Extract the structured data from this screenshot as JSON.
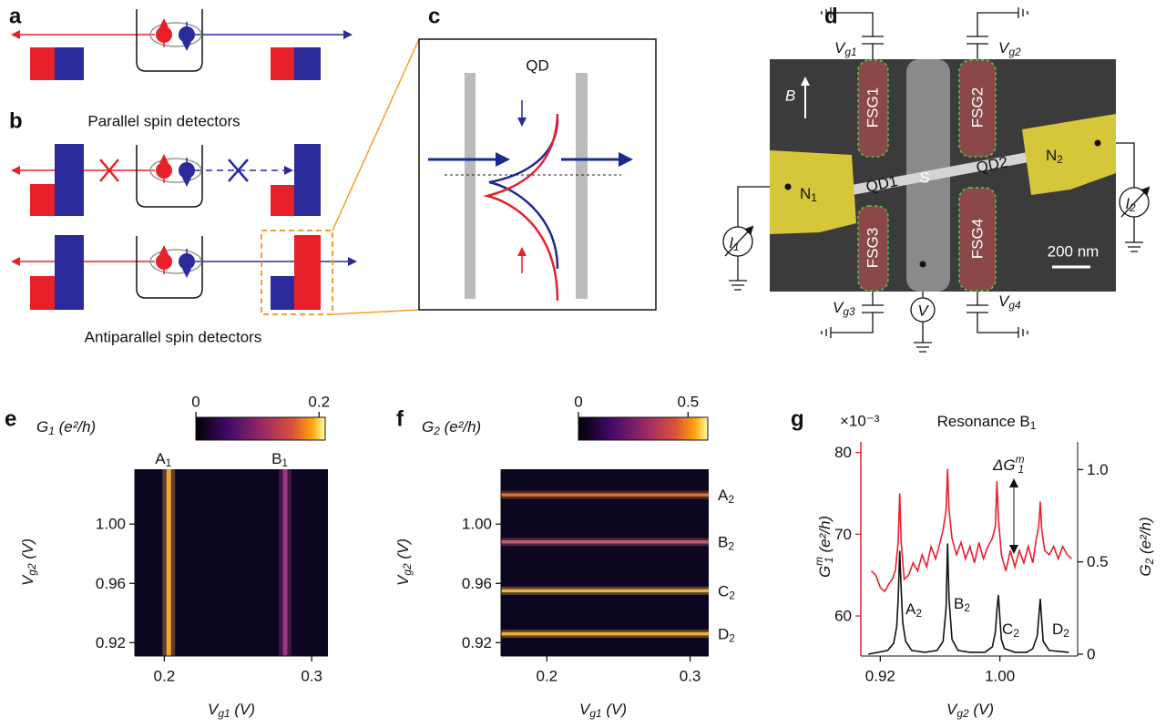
{
  "panel_labels": [
    "a",
    "b",
    "c",
    "d",
    "e",
    "f",
    "g"
  ],
  "panel_b": {
    "top": "Parallel spin detectors",
    "bottom": "Antiparallel spin detectors"
  },
  "panel_c": {
    "label": "QD"
  },
  "panel_d": {
    "gates": [
      "FSG1",
      "FSG2",
      "FSG3",
      "FSG4"
    ],
    "dots": [
      "QD1",
      "QD2"
    ],
    "s": "S",
    "n1": {
      "text": "N",
      "sub": "1"
    },
    "n2": {
      "text": "N",
      "sub": "2"
    },
    "b": "B",
    "scale": "200 nm",
    "vg1": {
      "text": "V",
      "sub": "g1"
    },
    "vg2": {
      "text": "V",
      "sub": "g2"
    },
    "vg3": {
      "text": "V",
      "sub": "g3"
    },
    "vg4": {
      "text": "V",
      "sub": "g4"
    },
    "i1": {
      "text": "I",
      "sub": "1"
    },
    "i2": {
      "text": "I",
      "sub": "2"
    },
    "v": "V"
  },
  "chart_data": [
    {
      "type": "heatmap",
      "colorbar": {
        "label": {
          "text": "G",
          "sub": "1",
          "after": " (e²/h)"
        },
        "lim": [
          0,
          0.21
        ],
        "ticks": [
          0,
          0.2
        ]
      },
      "xlabel": {
        "text": "V",
        "sub": "g1",
        "after": " (V)"
      },
      "ylabel": {
        "text": "V",
        "sub": "g2",
        "after": " (V)"
      },
      "xlim": [
        0.18,
        0.311
      ],
      "ylim": [
        0.911,
        1.037
      ],
      "xticks": [
        0.2,
        0.3
      ],
      "yticks": [
        0.92,
        0.96,
        {
          "value": 1,
          "label": "1.00"
        }
      ],
      "resonances": [
        {
          "name": {
            "text": "A",
            "sub": "1"
          },
          "x": 0.203,
          "color": "#f2a33a"
        },
        {
          "name": {
            "text": "B",
            "sub": "1"
          },
          "x": 0.282,
          "color": "#9c3583"
        }
      ]
    },
    {
      "type": "heatmap",
      "colorbar": {
        "label": {
          "text": "G",
          "sub": "2",
          "after": " (e²/h)"
        },
        "lim": [
          0,
          0.59
        ],
        "ticks": [
          0,
          0.5
        ]
      },
      "xlabel": {
        "text": "V",
        "sub": "g1",
        "after": " (V)"
      },
      "ylabel": {
        "text": "V",
        "sub": "g2",
        "after": " (V)"
      },
      "xlim": [
        0.168,
        0.313
      ],
      "ylim": [
        0.911,
        1.037
      ],
      "xticks": [
        0.2,
        0.3
      ],
      "yticks": [
        0.92,
        0.96,
        {
          "value": 1,
          "label": "1.00"
        }
      ],
      "resonances": [
        {
          "name": {
            "text": "A",
            "sub": "2"
          },
          "y": 1.0197,
          "color": "#d8702f"
        },
        {
          "name": {
            "text": "B",
            "sub": "2"
          },
          "y": 0.988,
          "color": "#c05a6a"
        },
        {
          "name": {
            "text": "C",
            "sub": "2"
          },
          "y": 0.955,
          "color": "#f0b040"
        },
        {
          "name": {
            "text": "D",
            "sub": "2"
          },
          "y": 0.926,
          "color": "#f0b040"
        }
      ]
    },
    {
      "type": "line",
      "title": {
        "text": "Resonance B",
        "sub": "1"
      },
      "scale_label": "×10⁻³",
      "xlabel": {
        "text": "V",
        "sub": "g2",
        "after": " (V)"
      },
      "ylabel": {
        "text": "G",
        "sup": "m",
        "sub": "1",
        "after": " (e²/h)"
      },
      "y2label": {
        "text": "G",
        "sub": "2",
        "after": " (e²/h)"
      },
      "xlim": [
        0.907,
        1.052
      ],
      "ylim": [
        55.1,
        81.3
      ],
      "y2lim": [
        -0.01,
        1.15
      ],
      "xticks": [
        0.92,
        {
          "value": 1,
          "label": "1.00"
        }
      ],
      "yticks": [
        60,
        70,
        80
      ],
      "y2ticks": [
        0,
        0.5,
        {
          "value": 1,
          "label": "1.0"
        }
      ],
      "axis_color": "#e8202a",
      "series": [
        {
          "color": "#e8202a",
          "x": [
            0.914,
            0.917,
            0.92,
            0.923,
            0.926,
            0.928,
            0.93,
            0.932,
            0.933,
            0.934,
            0.936,
            0.939,
            0.942,
            0.945,
            0.948,
            0.951,
            0.954,
            0.957,
            0.96,
            0.962,
            0.964,
            0.965,
            0.966,
            0.968,
            0.971,
            0.974,
            0.977,
            0.98,
            0.983,
            0.986,
            0.989,
            0.992,
            0.995,
            0.997,
            0.998,
            0.999,
            1.001,
            1.004,
            1.007,
            1.01,
            1.013,
            1.016,
            1.019,
            1.022,
            1.024,
            1.026,
            1.027,
            1.028,
            1.03,
            1.033,
            1.036,
            1.039,
            1.042,
            1.045,
            1.048
          ],
          "values": [
            65.5,
            65,
            63.5,
            63,
            64,
            64.5,
            65.5,
            69,
            75,
            69,
            64.5,
            65,
            66.5,
            65.5,
            67.5,
            66,
            68.5,
            67,
            69,
            70.5,
            73,
            78,
            73,
            69.5,
            67.5,
            69,
            67,
            68.5,
            66.5,
            69,
            67,
            68.5,
            69.5,
            71,
            76.5,
            72,
            67.5,
            65.5,
            68,
            66,
            68,
            66.5,
            68.5,
            66.5,
            69,
            71,
            74,
            70.5,
            68,
            67.5,
            68.5,
            67,
            68.5,
            67.5,
            67
          ]
        },
        {
          "color": "#111111",
          "axis": "y2",
          "x": [
            0.912,
            0.925,
            0.929,
            0.931,
            0.932,
            0.933,
            0.934,
            0.935,
            0.937,
            0.941,
            0.95,
            0.958,
            0.962,
            0.964,
            0.965,
            0.966,
            0.968,
            0.972,
            0.98,
            0.99,
            0.995,
            0.997,
            0.998,
            0.999,
            1.0,
            1.001,
            1.003,
            1.01,
            1.018,
            1.022,
            1.025,
            1.026,
            1.027,
            1.028,
            1.029,
            1.033,
            1.046
          ],
          "values": [
            0,
            0.02,
            0.06,
            0.15,
            0.3,
            0.56,
            0.35,
            0.17,
            0.07,
            0.02,
            0.01,
            0.02,
            0.07,
            0.25,
            0.6,
            0.3,
            0.08,
            0.02,
            0.01,
            0.01,
            0.04,
            0.12,
            0.24,
            0.32,
            0.2,
            0.08,
            0.03,
            0.01,
            0.01,
            0.03,
            0.1,
            0.2,
            0.3,
            0.18,
            0.07,
            0.02,
            0.01
          ]
        }
      ],
      "peak_labels": [
        {
          "text": "A",
          "sub": "2"
        },
        {
          "text": "B",
          "sub": "2"
        },
        {
          "text": "C",
          "sub": "2"
        },
        {
          "text": "D",
          "sub": "2"
        }
      ],
      "annotation": {
        "text": "ΔG",
        "sup": "m",
        "sub": "1"
      }
    }
  ]
}
